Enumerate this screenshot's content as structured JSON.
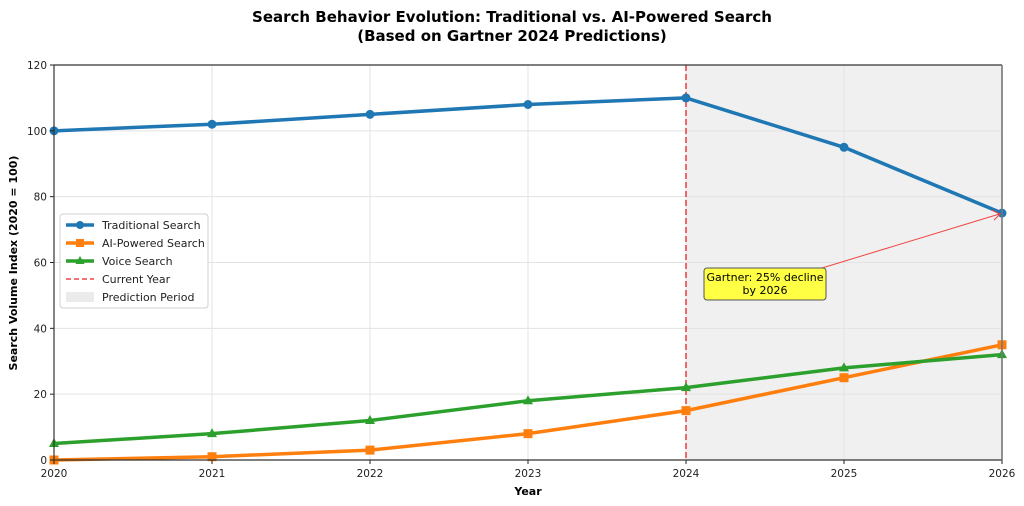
{
  "chart_data": {
    "type": "line",
    "title": "Search Behavior Evolution: Traditional vs. AI-Powered Search",
    "subtitle": "(Based on Gartner 2024 Predictions)",
    "xlabel": "Year",
    "ylabel": "Search Volume Index (2020 = 100)",
    "x": [
      2020,
      2021,
      2022,
      2023,
      2024,
      2025,
      2026
    ],
    "xticks": [
      "2020",
      "2021",
      "2022",
      "2023",
      "2024",
      "2025",
      "2026"
    ],
    "xlim": [
      2020,
      2026
    ],
    "ylim": [
      0,
      120
    ],
    "yticks": [
      "0",
      "20",
      "40",
      "60",
      "80",
      "100",
      "120"
    ],
    "grid": true,
    "legend_position": "center-left",
    "series": [
      {
        "name": "Traditional Search",
        "color": "#1f77b4",
        "marker": "circle",
        "values": [
          100,
          102,
          105,
          108,
          110,
          95,
          75
        ]
      },
      {
        "name": "AI-Powered Search",
        "color": "#ff7f0e",
        "marker": "square",
        "values": [
          0,
          1,
          3,
          8,
          15,
          25,
          35
        ]
      },
      {
        "name": "Voice Search",
        "color": "#2ca02c",
        "marker": "triangle",
        "values": [
          5,
          8,
          12,
          18,
          22,
          28,
          32
        ]
      }
    ],
    "current_year": {
      "label": "Current Year",
      "x": 2024,
      "color": "#ef4444"
    },
    "prediction_period": {
      "label": "Prediction Period",
      "from": 2024,
      "to": 2026,
      "color": "#f0f0f0"
    },
    "annotation": {
      "lines": [
        "Gartner: 25% decline",
        "by 2026"
      ],
      "target": {
        "x": 2026,
        "y": 75
      },
      "text_at": {
        "x": 2024.5,
        "y": 53
      },
      "box_color": "#ffff44",
      "arrow_color": "#ef4444"
    }
  }
}
